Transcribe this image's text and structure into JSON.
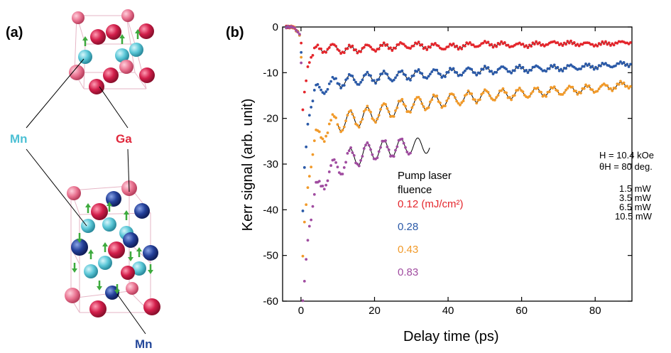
{
  "panels": {
    "a": "(a)",
    "b": "(b)"
  },
  "crystal": {
    "labels": {
      "mn_top": "Mn",
      "ga": "Ga",
      "mn_bottom": "Mn"
    },
    "colors": {
      "ga": "#d21e4a",
      "mn_light": "#5cc8d8",
      "mn_dark": "#24409a",
      "spin_arrow": "#3daa3d",
      "label_mn_light": "#4cc0d4",
      "label_ga": "#e0283c",
      "label_mn_dark": "#24489a"
    }
  },
  "side_note": {
    "field_h": "H = 10.4 kOe",
    "theta_h": "θH = 80 deg.",
    "powers": [
      "1.5 mW",
      "3.5 mW",
      "6.5 mW",
      "10.5 mW"
    ]
  },
  "legend": {
    "title_line1": "Pump laser",
    "title_line2": "fluence",
    "entries": [
      "0.12 (mJ/cm²)",
      "0.28",
      "0.43",
      "0.83"
    ]
  },
  "chart_data": {
    "type": "scatter",
    "xlabel": "Delay time (ps)",
    "ylabel": "Kerr  signal (arb. unit)",
    "xlim": [
      -5,
      90
    ],
    "ylim": [
      -60,
      0
    ],
    "xticks": [
      0,
      20,
      40,
      60,
      80
    ],
    "yticks": [
      0,
      -10,
      -20,
      -30,
      -40,
      -50,
      -60
    ],
    "grid": false,
    "legend_position": "lower-right",
    "fit_line_color": "#000000",
    "series": [
      {
        "name": "0.12",
        "color": "#e4262c",
        "fit_from": 5,
        "fit_to": 90,
        "points": [
          [
            -2,
            0
          ],
          [
            0,
            -2
          ],
          [
            0.5,
            -18
          ],
          [
            1,
            -14
          ],
          [
            2,
            -8
          ],
          [
            4,
            -5
          ],
          [
            8,
            -4.5
          ],
          [
            12,
            -5
          ],
          [
            20,
            -4.5
          ],
          [
            30,
            -4
          ],
          [
            40,
            -4.4
          ],
          [
            50,
            -3.7
          ],
          [
            60,
            -4
          ],
          [
            70,
            -3.5
          ],
          [
            80,
            -3.8
          ],
          [
            90,
            -3.3
          ]
        ]
      },
      {
        "name": "0.28",
        "color": "#2b5aa8",
        "fit_from": 10,
        "fit_to": 90,
        "points": [
          [
            -2,
            0
          ],
          [
            0,
            -2
          ],
          [
            0.5,
            -40
          ],
          [
            1,
            -30
          ],
          [
            2,
            -20
          ],
          [
            4,
            -14
          ],
          [
            7,
            -13
          ],
          [
            10,
            -12
          ],
          [
            20,
            -11
          ],
          [
            30,
            -10.5
          ],
          [
            40,
            -10
          ],
          [
            50,
            -9.5
          ],
          [
            60,
            -9.2
          ],
          [
            70,
            -9
          ],
          [
            80,
            -8.6
          ],
          [
            90,
            -8
          ]
        ]
      },
      {
        "name": "0.43",
        "color": "#f19a2a",
        "fit_from": 10,
        "fit_to": 90,
        "points": [
          [
            -2,
            0
          ],
          [
            0,
            -2
          ],
          [
            0.5,
            -50
          ],
          [
            1,
            -42
          ],
          [
            2,
            -34
          ],
          [
            4,
            -25
          ],
          [
            7,
            -22
          ],
          [
            10,
            -21
          ],
          [
            20,
            -19
          ],
          [
            30,
            -17
          ],
          [
            40,
            -16
          ],
          [
            50,
            -15
          ],
          [
            60,
            -14.5
          ],
          [
            70,
            -14
          ],
          [
            80,
            -13.5
          ],
          [
            90,
            -12.5
          ]
        ]
      },
      {
        "name": "0.83",
        "color": "#a04ca0",
        "fit_from": 13,
        "fit_to": 35,
        "points": [
          [
            -2,
            0
          ],
          [
            0,
            -2
          ],
          [
            0.5,
            -60
          ],
          [
            1,
            -55
          ],
          [
            2,
            -45
          ],
          [
            4,
            -37
          ],
          [
            6,
            -33
          ],
          [
            8,
            -32
          ],
          [
            10,
            -30.5
          ],
          [
            13,
            -29
          ],
          [
            16,
            -28
          ],
          [
            20,
            -27
          ],
          [
            25,
            -26.5
          ],
          [
            30,
            -26
          ]
        ]
      }
    ]
  }
}
